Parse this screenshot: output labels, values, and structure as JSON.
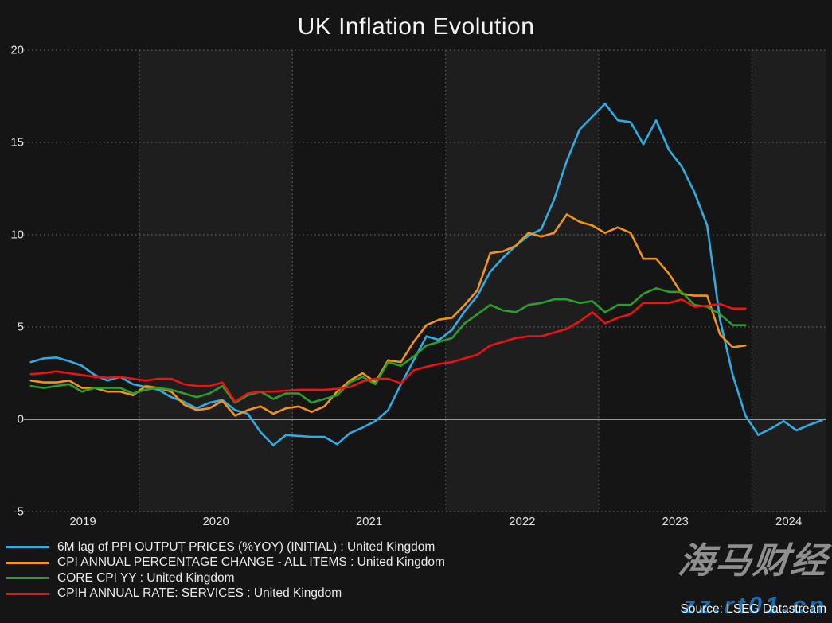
{
  "title": "UK Inflation Evolution",
  "source": "Source: LSEG Datastream",
  "watermark": {
    "cjk": "海马财经",
    "domain": "zz.rt01.cn"
  },
  "colors": {
    "background": "#151515",
    "band_light": "#1e1e1e",
    "band_dark": "#151515",
    "grid_dotted": "#606060",
    "grid_vertical": "#585858",
    "zero_line": "#c4c4c4",
    "ppi": "#2fade3",
    "cpi": "#f0941e",
    "core_cpi": "#2b9e2b",
    "cpih_services": "#ee1212"
  },
  "legend": [
    {
      "label": "6M lag of PPI OUTPUT PRICES (%YOY) (INITIAL) : United Kingdom",
      "color_key": "ppi"
    },
    {
      "label": "CPI ANNUAL PERCENTAGE CHANGE - ALL ITEMS : United Kingdom",
      "color_key": "cpi"
    },
    {
      "label": "CORE CPI YY : United Kingdom",
      "color_key": "core_cpi"
    },
    {
      "label": "CPIH ANNUAL RATE: SERVICES : United Kingdom",
      "color_key": "cpih_services"
    }
  ],
  "chart_data": {
    "type": "line",
    "title": "UK Inflation Evolution",
    "x_unit": "month",
    "x_start": "2019-04",
    "x_tick_labels": [
      "2019",
      "2020",
      "2021",
      "2022",
      "2023",
      "2024"
    ],
    "x_year_gridlines": [
      2020,
      2021,
      2022,
      2023,
      2024
    ],
    "ylim": [
      -5,
      20
    ],
    "y_ticks": [
      20,
      15,
      10,
      5,
      0,
      -5
    ],
    "grid": "dotted horizontal lines at ticks, dotted vertical lines at year starts, solid line at zero, alternating year background bands",
    "legend_position": "bottom-left",
    "series": [
      {
        "name": "6M lag of PPI OUTPUT PRICES (%YOY) (INITIAL) : United Kingdom",
        "color_key": "ppi",
        "start": "2019-04",
        "values": [
          3.1,
          3.3,
          3.35,
          3.15,
          2.9,
          2.4,
          2.1,
          2.3,
          1.9,
          1.75,
          1.6,
          1.2,
          0.95,
          0.6,
          0.9,
          1.05,
          0.5,
          0.3,
          -0.7,
          -1.4,
          -0.85,
          -0.9,
          -0.95,
          -0.95,
          -1.35,
          -0.75,
          -0.45,
          -0.1,
          0.5,
          1.9,
          3.2,
          4.5,
          4.3,
          4.85,
          5.85,
          6.7,
          8.0,
          8.75,
          9.4,
          9.95,
          10.3,
          11.9,
          14.0,
          15.7,
          16.4,
          17.1,
          16.2,
          16.1,
          14.9,
          16.2,
          14.6,
          13.7,
          12.3,
          10.5,
          5.4,
          2.4,
          0.2,
          -0.85,
          -0.5,
          -0.1,
          -0.6,
          -0.3,
          -0.05
        ]
      },
      {
        "name": "CPI ANNUAL PERCENTAGE CHANGE - ALL ITEMS : United Kingdom",
        "color_key": "cpi",
        "start": "2019-04",
        "values": [
          2.1,
          2.0,
          2.0,
          2.1,
          1.7,
          1.7,
          1.5,
          1.5,
          1.3,
          1.8,
          1.7,
          1.5,
          0.8,
          0.5,
          0.6,
          1.0,
          0.2,
          0.5,
          0.7,
          0.3,
          0.6,
          0.7,
          0.4,
          0.7,
          1.5,
          2.1,
          2.5,
          2.0,
          3.2,
          3.1,
          4.2,
          5.1,
          5.4,
          5.5,
          6.2,
          7.0,
          9.0,
          9.1,
          9.4,
          10.1,
          9.9,
          10.1,
          11.1,
          10.7,
          10.5,
          10.1,
          10.4,
          10.1,
          8.7,
          8.7,
          7.9,
          6.8,
          6.7,
          6.7,
          4.6,
          3.9,
          4.0
        ]
      },
      {
        "name": "CORE CPI YY : United Kingdom",
        "color_key": "core_cpi",
        "start": "2019-04",
        "values": [
          1.8,
          1.7,
          1.8,
          1.9,
          1.5,
          1.7,
          1.7,
          1.7,
          1.4,
          1.6,
          1.7,
          1.6,
          1.4,
          1.2,
          1.4,
          1.8,
          0.9,
          1.3,
          1.5,
          1.1,
          1.4,
          1.4,
          0.9,
          1.1,
          1.3,
          2.0,
          2.3,
          1.9,
          3.1,
          2.9,
          3.4,
          4.0,
          4.2,
          4.4,
          5.2,
          5.7,
          6.2,
          5.9,
          5.8,
          6.2,
          6.3,
          6.5,
          6.5,
          6.3,
          6.4,
          5.8,
          6.2,
          6.2,
          6.8,
          7.1,
          6.9,
          6.9,
          6.2,
          6.1,
          5.7,
          5.1,
          5.1
        ]
      },
      {
        "name": "CPIH ANNUAL RATE: SERVICES : United Kingdom",
        "color_key": "cpih_services",
        "start": "2019-04",
        "values": [
          2.45,
          2.5,
          2.6,
          2.5,
          2.4,
          2.3,
          2.25,
          2.3,
          2.2,
          2.1,
          2.2,
          2.2,
          1.9,
          1.8,
          1.8,
          2.0,
          0.95,
          1.4,
          1.5,
          1.5,
          1.55,
          1.6,
          1.6,
          1.6,
          1.65,
          1.75,
          2.05,
          2.2,
          2.2,
          1.95,
          2.65,
          2.85,
          3.0,
          3.1,
          3.3,
          3.5,
          4.0,
          4.2,
          4.4,
          4.5,
          4.5,
          4.7,
          4.9,
          5.3,
          5.8,
          5.2,
          5.5,
          5.7,
          6.3,
          6.3,
          6.3,
          6.5,
          6.1,
          6.15,
          6.25,
          6.0,
          6.0
        ]
      }
    ]
  }
}
